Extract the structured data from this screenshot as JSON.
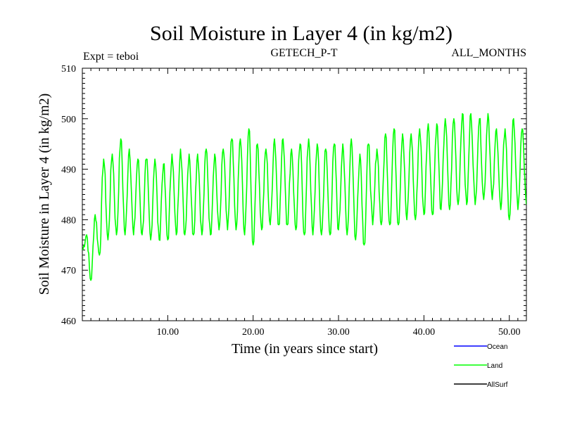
{
  "chart_data": {
    "type": "line",
    "title": "Soil Moisture in Layer 4 (in kg/m2)",
    "subtitle_left": "Expt = teboi",
    "subtitle_center": "GETECH_P-T",
    "subtitle_right": "ALL_MONTHS",
    "xlabel": "Time (in years since start)",
    "ylabel": "Soil Moisture in Layer 4 (in kg/m2)",
    "xlim": [
      0,
      52
    ],
    "ylim": [
      460,
      510
    ],
    "xticks": [
      "10.00",
      "20.00",
      "30.00",
      "40.00",
      "50.00"
    ],
    "yticks": [
      "460",
      "470",
      "480",
      "490",
      "500",
      "510"
    ],
    "legend_position": "bottom-right",
    "series": [
      {
        "name": "Ocean",
        "color": "#0000ff",
        "values": []
      },
      {
        "name": "Land",
        "color": "#00ff00",
        "annual_peaks": [
          {
            "x": 0.5,
            "y": 477
          },
          {
            "x": 1.5,
            "y": 481
          },
          {
            "x": 2.5,
            "y": 492
          },
          {
            "x": 3.5,
            "y": 493
          },
          {
            "x": 4.5,
            "y": 496
          },
          {
            "x": 5.5,
            "y": 494
          },
          {
            "x": 6.5,
            "y": 492
          },
          {
            "x": 7.5,
            "y": 492
          },
          {
            "x": 8.5,
            "y": 492
          },
          {
            "x": 9.5,
            "y": 491
          },
          {
            "x": 10.5,
            "y": 493
          },
          {
            "x": 11.5,
            "y": 494
          },
          {
            "x": 12.5,
            "y": 493
          },
          {
            "x": 13.5,
            "y": 493
          },
          {
            "x": 14.5,
            "y": 494
          },
          {
            "x": 15.5,
            "y": 493
          },
          {
            "x": 16.5,
            "y": 494
          },
          {
            "x": 17.5,
            "y": 496
          },
          {
            "x": 18.5,
            "y": 496
          },
          {
            "x": 19.5,
            "y": 498
          },
          {
            "x": 20.5,
            "y": 495
          },
          {
            "x": 21.5,
            "y": 494
          },
          {
            "x": 22.5,
            "y": 496
          },
          {
            "x": 23.5,
            "y": 496
          },
          {
            "x": 24.5,
            "y": 494
          },
          {
            "x": 25.5,
            "y": 495
          },
          {
            "x": 26.5,
            "y": 496
          },
          {
            "x": 27.5,
            "y": 495
          },
          {
            "x": 28.5,
            "y": 494
          },
          {
            "x": 29.5,
            "y": 495
          },
          {
            "x": 30.5,
            "y": 495
          },
          {
            "x": 31.5,
            "y": 496
          },
          {
            "x": 32.5,
            "y": 493
          },
          {
            "x": 33.5,
            "y": 495
          },
          {
            "x": 34.5,
            "y": 494
          },
          {
            "x": 35.5,
            "y": 497
          },
          {
            "x": 36.5,
            "y": 498
          },
          {
            "x": 37.5,
            "y": 497
          },
          {
            "x": 38.5,
            "y": 497
          },
          {
            "x": 39.5,
            "y": 498
          },
          {
            "x": 40.5,
            "y": 499
          },
          {
            "x": 41.5,
            "y": 499
          },
          {
            "x": 42.5,
            "y": 500
          },
          {
            "x": 43.5,
            "y": 500
          },
          {
            "x": 44.5,
            "y": 501
          },
          {
            "x": 45.5,
            "y": 501
          },
          {
            "x": 46.5,
            "y": 500
          },
          {
            "x": 47.5,
            "y": 501
          },
          {
            "x": 48.5,
            "y": 498
          },
          {
            "x": 49.5,
            "y": 498
          },
          {
            "x": 50.5,
            "y": 500
          },
          {
            "x": 51.5,
            "y": 498
          }
        ],
        "annual_troughs": [
          {
            "x": 1.0,
            "y": 468
          },
          {
            "x": 2.0,
            "y": 473
          },
          {
            "x": 3.0,
            "y": 476
          },
          {
            "x": 4.0,
            "y": 477
          },
          {
            "x": 5.0,
            "y": 477
          },
          {
            "x": 6.0,
            "y": 477
          },
          {
            "x": 7.0,
            "y": 477
          },
          {
            "x": 8.0,
            "y": 476
          },
          {
            "x": 9.0,
            "y": 476
          },
          {
            "x": 10.0,
            "y": 476
          },
          {
            "x": 11.0,
            "y": 477
          },
          {
            "x": 12.0,
            "y": 477
          },
          {
            "x": 13.0,
            "y": 477
          },
          {
            "x": 14.0,
            "y": 477
          },
          {
            "x": 15.0,
            "y": 477
          },
          {
            "x": 16.0,
            "y": 478
          },
          {
            "x": 17.0,
            "y": 478
          },
          {
            "x": 18.0,
            "y": 478
          },
          {
            "x": 19.0,
            "y": 477
          },
          {
            "x": 20.0,
            "y": 475
          },
          {
            "x": 21.0,
            "y": 478
          },
          {
            "x": 22.0,
            "y": 479
          },
          {
            "x": 23.0,
            "y": 479
          },
          {
            "x": 24.0,
            "y": 479
          },
          {
            "x": 25.0,
            "y": 478
          },
          {
            "x": 26.0,
            "y": 477
          },
          {
            "x": 27.0,
            "y": 477
          },
          {
            "x": 28.0,
            "y": 477
          },
          {
            "x": 29.0,
            "y": 477
          },
          {
            "x": 30.0,
            "y": 478
          },
          {
            "x": 31.0,
            "y": 477
          },
          {
            "x": 32.0,
            "y": 476
          },
          {
            "x": 33.0,
            "y": 475
          },
          {
            "x": 34.0,
            "y": 479
          },
          {
            "x": 35.0,
            "y": 479
          },
          {
            "x": 36.0,
            "y": 479
          },
          {
            "x": 37.0,
            "y": 479
          },
          {
            "x": 38.0,
            "y": 480
          },
          {
            "x": 39.0,
            "y": 480
          },
          {
            "x": 40.0,
            "y": 481
          },
          {
            "x": 41.0,
            "y": 481
          },
          {
            "x": 42.0,
            "y": 482
          },
          {
            "x": 43.0,
            "y": 482
          },
          {
            "x": 44.0,
            "y": 483
          },
          {
            "x": 45.0,
            "y": 483
          },
          {
            "x": 46.0,
            "y": 483
          },
          {
            "x": 47.0,
            "y": 484
          },
          {
            "x": 48.0,
            "y": 484
          },
          {
            "x": 49.0,
            "y": 482
          },
          {
            "x": 50.0,
            "y": 480
          },
          {
            "x": 51.0,
            "y": 482
          },
          {
            "x": 52.0,
            "y": 483
          }
        ]
      },
      {
        "name": "AllSurf",
        "color": "#000000",
        "values": []
      }
    ]
  }
}
